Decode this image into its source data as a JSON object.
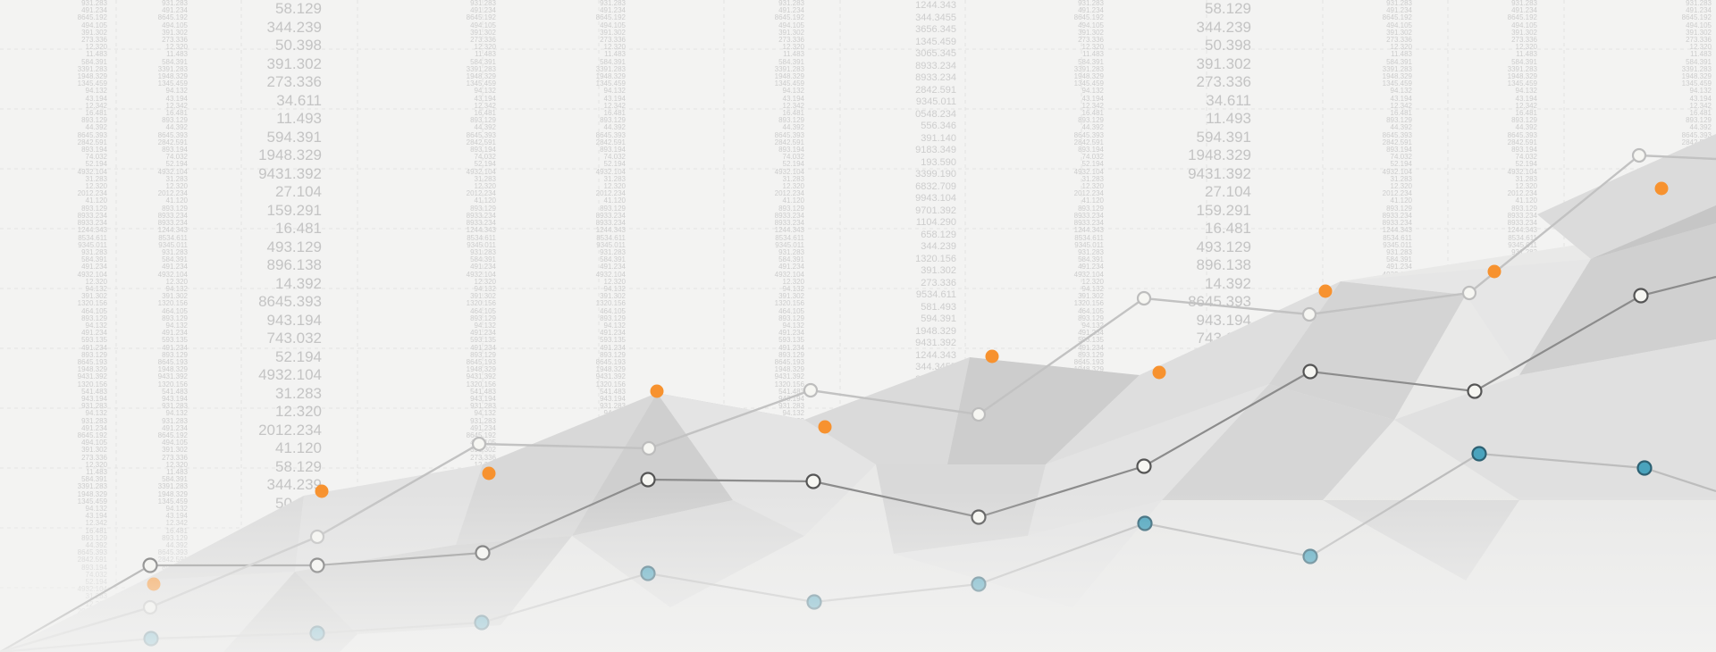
{
  "background_numbers": {
    "big_column": [
      "58.129",
      "344.239",
      "50.398",
      "391.302",
      "273.336",
      "34.611",
      "11.493",
      "594.391",
      "1948.329",
      "9431.392",
      "27.104",
      "159.291",
      "16.481",
      "493.129",
      "896.138",
      "14.392",
      "8645.393",
      "943.194",
      "743.032",
      "52.194",
      "4932.104",
      "31.283",
      "12.320",
      "2012.234",
      "41.120"
    ],
    "small_column_a": [
      "1244.343",
      "344.3455",
      "3656.345",
      "1345.459",
      "3065.345",
      "8933.234",
      "8933.234",
      "2842.591",
      "9345.011",
      "0548.234",
      "556.346",
      "391.140",
      "9183.349",
      "193.590",
      "3399.190",
      "6832.709",
      "9943.104",
      "9701.392",
      "1104.290",
      "658.129",
      "344.239",
      "1320.156",
      "391.302",
      "273.336",
      "9534.611",
      "581.493",
      "594.391",
      "1948.329",
      "9431.392"
    ],
    "small_column_b": [
      "931.283",
      "491.234",
      "8645.192",
      "494.105",
      "391.302",
      "273.336",
      "12.320",
      "11.483",
      "584.391",
      "3391.283",
      "1948.329",
      "1345.459",
      "94.132",
      "43.194",
      "12.342",
      "16.481",
      "893.129",
      "44.392",
      "8645.393",
      "2842.591",
      "893.194",
      "74.032",
      "52.194",
      "4932.104",
      "31.283",
      "12.320",
      "2012.234",
      "41.120",
      "893.129",
      "8933.234",
      "8933.234",
      "1244.343",
      "8534.611",
      "9345.011",
      "931.283",
      "584.391",
      "491.234",
      "4932.104",
      "12.320",
      "94.132",
      "391.302",
      "1320.156",
      "464.105",
      "893.129",
      "94.132",
      "491.234",
      "593.135",
      "491.234",
      "893.129",
      "8645.193",
      "1948.329",
      "9431.392",
      "1320.156",
      "541.483",
      "943.194",
      "931.283",
      "94.132"
    ]
  },
  "colors": {
    "background": "#f3f3f2",
    "dark_line": "#8c8c8c",
    "light_line": "#bdbdbd",
    "blue_line": "#bfbfbf",
    "orange_dot": "#f7922f",
    "blue_dot": "#4aa3bd",
    "blue_dot_stroke": "#2e6173",
    "white_dot": "#f6f6f2",
    "white_dot_stroke": "#555555",
    "light_dot_stroke": "#b8b8b8"
  },
  "decor": {
    "polygon_shades": [
      "#e6e6e6",
      "#dcdcdc",
      "#d2d2d2",
      "#c9c9c9",
      "#efefef",
      "#e1e1e1"
    ]
  },
  "icons": [
    "polygon-terrain",
    "line-series-dark",
    "line-series-light",
    "line-series-blue",
    "orange-scatter-dots"
  ]
}
